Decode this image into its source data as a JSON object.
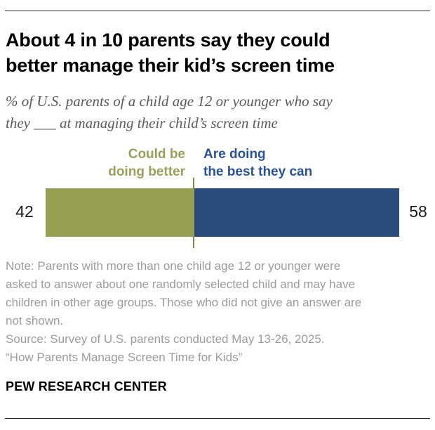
{
  "header": {
    "title_lines": [
      "About 4 in 10 parents say they could",
      "better manage their kid’s screen time"
    ],
    "subtitle_lines": [
      "% of U.S. parents of a child age 12 or younger who say",
      "they ___ at managing their child’s screen time"
    ]
  },
  "chart_data": {
    "type": "bar",
    "orientation": "horizontal_stacked",
    "title": "About 4 in 10 parents say they could better manage their kid’s screen time",
    "subtitle": "% of U.S. parents of a child age 12 or younger who say they ___ at managing their child’s screen time",
    "categories": [
      "Could be doing better",
      "Are doing the best they can"
    ],
    "values": [
      42,
      58
    ],
    "unit": "%",
    "xlim": [
      0,
      100
    ],
    "value_labels": [
      "42",
      "58"
    ],
    "widths": [
      "42%",
      "58%"
    ],
    "colors": [
      "#95a053",
      "#2a4c7c"
    ],
    "label_colors": [
      "#9aa05c",
      "#2b5394"
    ],
    "divider_color": "#7e8a41",
    "legend_position": "above_bar",
    "legend": [
      {
        "lines": [
          "Could be",
          "doing better"
        ]
      },
      {
        "lines": [
          "Are doing",
          "the best they can"
        ]
      }
    ]
  },
  "footer": {
    "note_lines": [
      "Note: Parents with more than one child age 12 or younger were",
      "asked to answer about one randomly selected child and may have",
      "children in other age groups. Those who did not give an answer are",
      "not shown."
    ],
    "source_line": "Source: Survey of U.S. parents conducted May 13-26, 2025.",
    "quote_line": "“How Parents Manage Screen Time for Kids”",
    "brand": "PEW RESEARCH CENTER"
  }
}
